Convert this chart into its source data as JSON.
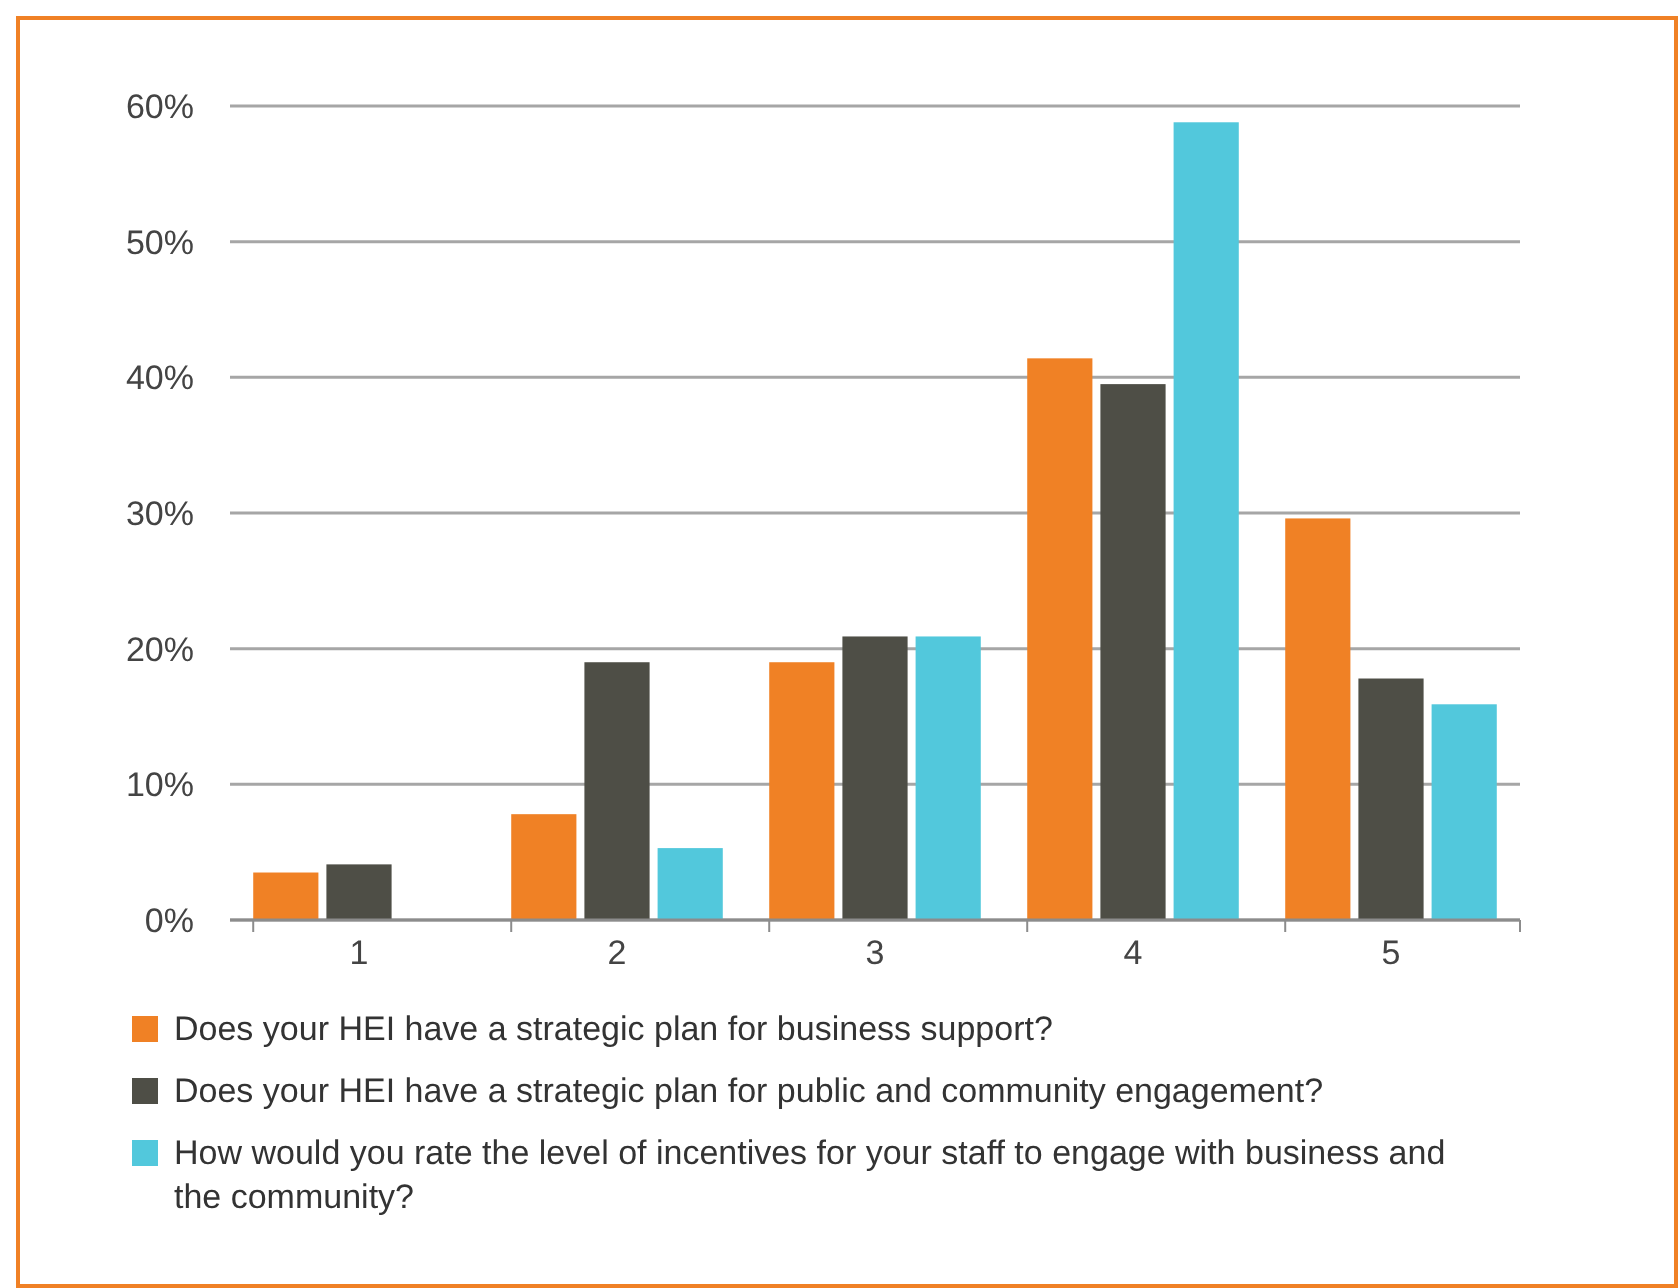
{
  "chart_data": {
    "type": "bar",
    "categories": [
      "1",
      "2",
      "3",
      "4",
      "5"
    ],
    "series": [
      {
        "name": "Does your HEI have a strategic plan for business support?",
        "color": "#f08125",
        "values": [
          3.5,
          7.8,
          19,
          41.4,
          29.6
        ]
      },
      {
        "name": "Does your HEI have a strategic plan for public and community engagement?",
        "color": "#4e4e46",
        "values": [
          4.1,
          19,
          20.9,
          39.5,
          17.8
        ]
      },
      {
        "name": "How would you rate the level of incentives for your staff to engage with business and the community?",
        "color": "#52c8dc",
        "values": [
          0,
          5.3,
          20.9,
          58.8,
          15.9
        ]
      }
    ],
    "ylim": [
      0,
      60
    ],
    "yticks": [
      {
        "value": 0,
        "label": "0%"
      },
      {
        "value": 10,
        "label": "10%"
      },
      {
        "value": 20,
        "label": "20%"
      },
      {
        "value": 30,
        "label": "30%"
      },
      {
        "value": 40,
        "label": "40%"
      },
      {
        "value": 50,
        "label": "50%"
      },
      {
        "value": 60,
        "label": "60%"
      }
    ],
    "grid": "y",
    "legend": "bottom"
  }
}
